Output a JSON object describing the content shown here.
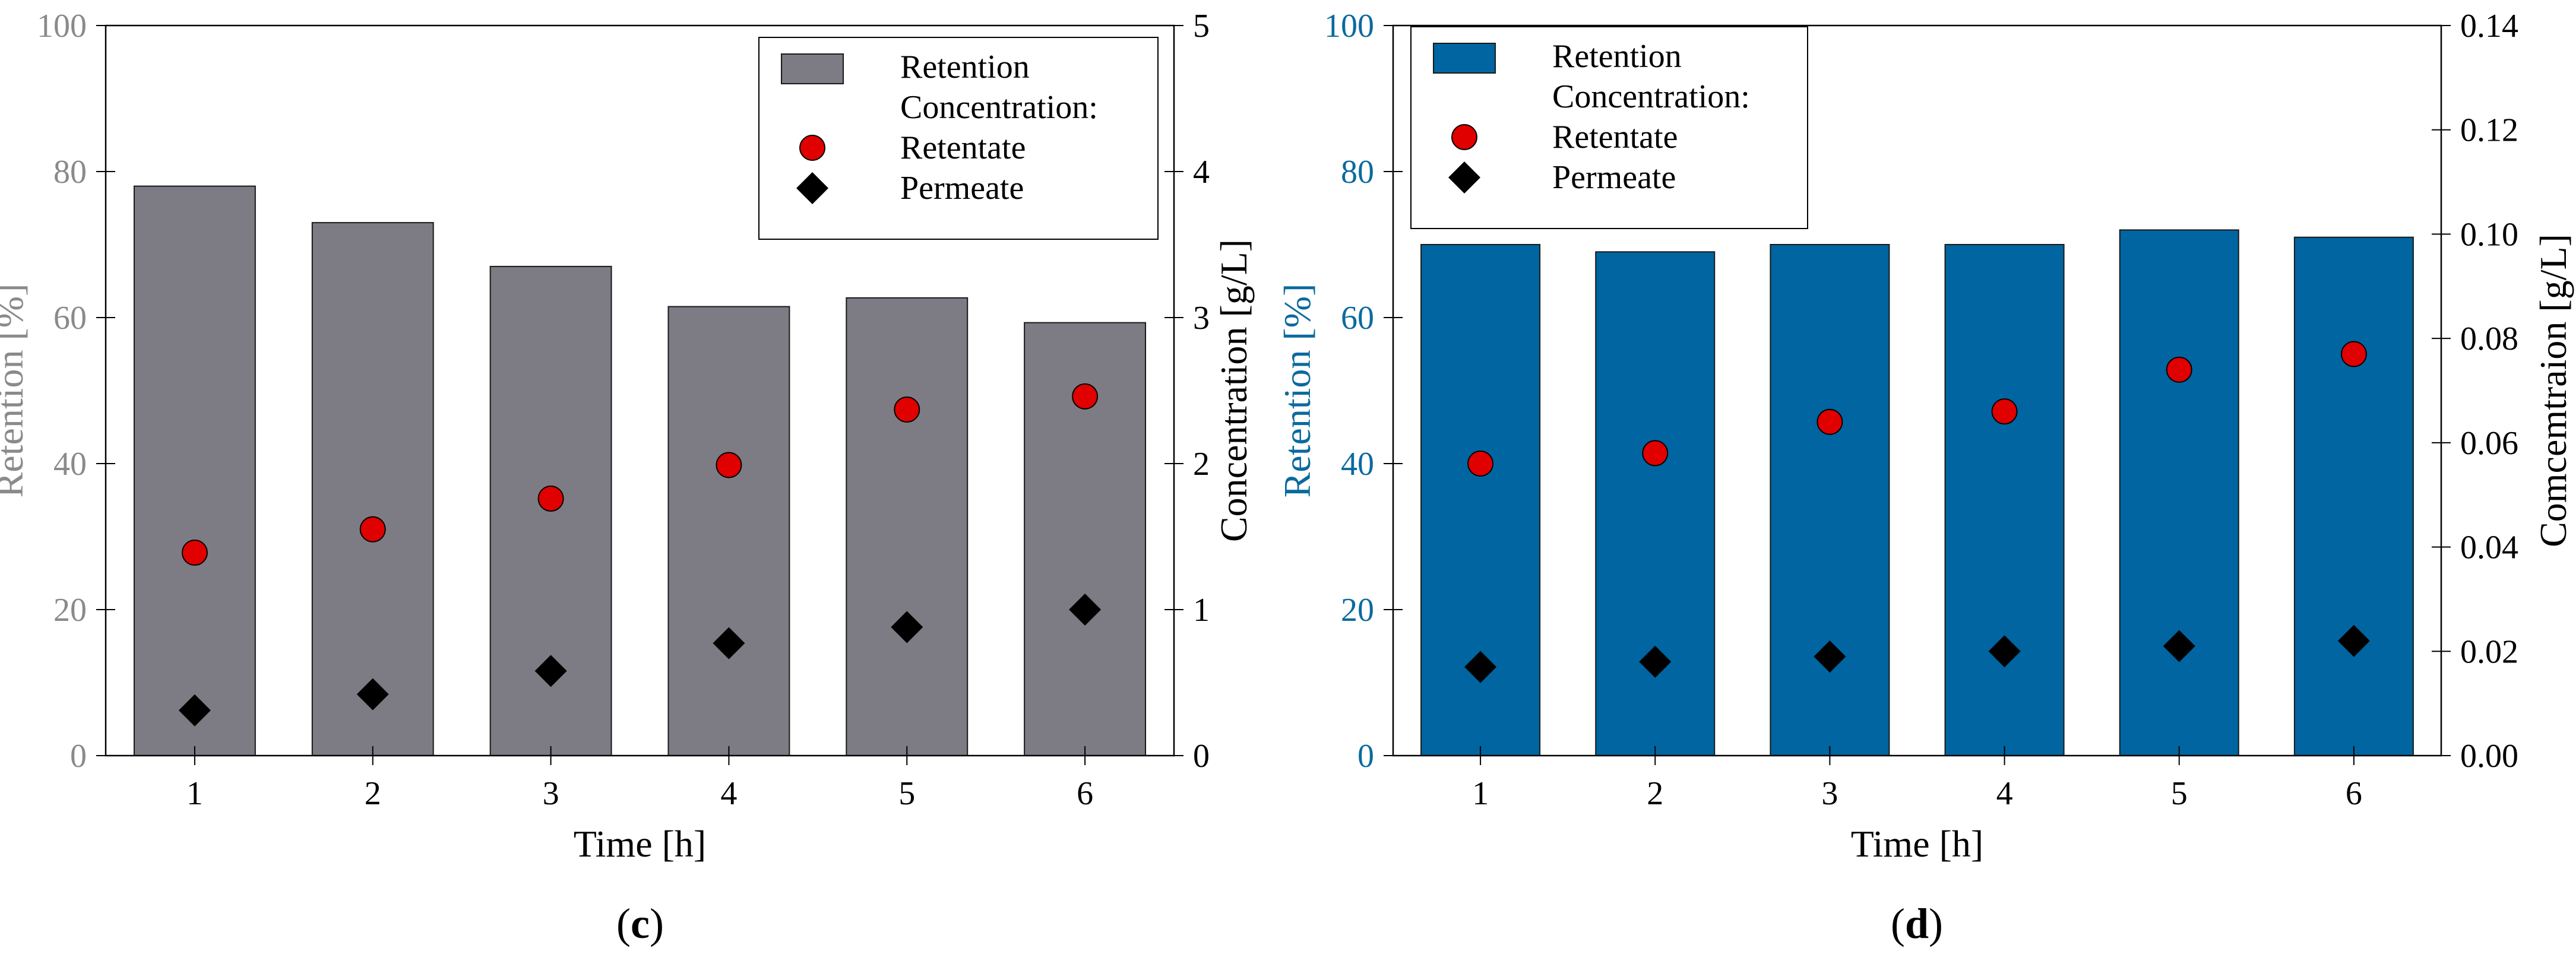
{
  "chart_data": [
    {
      "type": "bar",
      "panel_label": "c",
      "categories": [
        "1",
        "2",
        "3",
        "4",
        "5",
        "6"
      ],
      "xlabel": "Time [h]",
      "ylabel": "Retention [%]",
      "y2label": "Concentration [g/L]",
      "ylim": [
        0,
        100
      ],
      "y2lim": [
        0,
        5
      ],
      "yticks": [
        "0",
        "20",
        "40",
        "60",
        "80",
        "100"
      ],
      "y2ticks": [
        "0",
        "1",
        "2",
        "3",
        "4",
        "5"
      ],
      "colors": {
        "bar": "#7d7b83",
        "axis_left": "#8a8a8a",
        "marker_retentate": "#e00000",
        "marker_permeate": "#000000"
      },
      "legend": {
        "position": "top-right",
        "retention": "Retention",
        "concentration": "Concentration:",
        "retentate": "Retentate",
        "permeate": "Permeate"
      },
      "series": [
        {
          "name": "Retention",
          "axis": "left",
          "kind": "bar",
          "values": [
            78,
            73,
            67,
            61.5,
            62.7,
            59.3
          ]
        },
        {
          "name": "Retentate",
          "axis": "right",
          "kind": "circle",
          "values": [
            1.39,
            1.55,
            1.76,
            1.99,
            2.37,
            2.46
          ]
        },
        {
          "name": "Permeate",
          "axis": "right",
          "kind": "diamond",
          "values": [
            0.31,
            0.42,
            0.58,
            0.77,
            0.88,
            1.0
          ]
        }
      ]
    },
    {
      "type": "bar",
      "panel_label": "d",
      "categories": [
        "1",
        "2",
        "3",
        "4",
        "5",
        "6"
      ],
      "xlabel": "Time [h]",
      "ylabel": "Retention [%]",
      "y2label": "Comcemtraion [g/L]",
      "ylim": [
        0,
        100
      ],
      "y2lim": [
        0,
        0.14
      ],
      "yticks": [
        "0",
        "20",
        "40",
        "60",
        "80",
        "100"
      ],
      "y2ticks": [
        "0.00",
        "0.02",
        "0.04",
        "0.06",
        "0.08",
        "0.10",
        "0.12",
        "0.14"
      ],
      "colors": {
        "bar": "#0065a0",
        "axis_left": "#0b6a9e",
        "marker_retentate": "#e00000",
        "marker_permeate": "#000000"
      },
      "legend": {
        "position": "top-left",
        "retention": "Retention",
        "concentration": "Concentration:",
        "retentate": "Retentate",
        "permeate": "Permeate"
      },
      "series": [
        {
          "name": "Retention",
          "axis": "left",
          "kind": "bar",
          "values": [
            70,
            69,
            70,
            70,
            72,
            71
          ]
        },
        {
          "name": "Retentate",
          "axis": "right",
          "kind": "circle",
          "values": [
            0.056,
            0.058,
            0.064,
            0.066,
            0.074,
            0.077
          ]
        },
        {
          "name": "Permeate",
          "axis": "right",
          "kind": "diamond",
          "values": [
            0.017,
            0.018,
            0.019,
            0.02,
            0.021,
            0.022
          ]
        }
      ]
    }
  ]
}
